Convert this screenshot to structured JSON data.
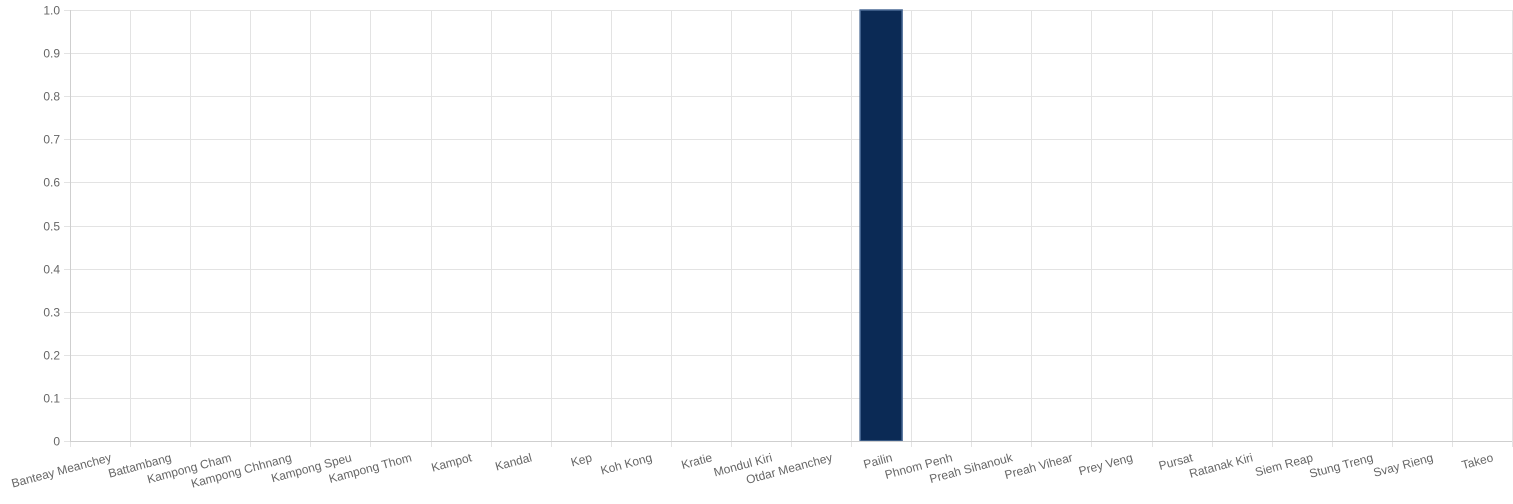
{
  "chart_data": {
    "type": "bar",
    "title": "",
    "xlabel": "",
    "ylabel": "",
    "ylim": [
      0,
      1
    ],
    "y_ticks": [
      "0",
      "0.1",
      "0.2",
      "0.3",
      "0.4",
      "0.5",
      "0.6",
      "0.7",
      "0.8",
      "0.9",
      "1.0"
    ],
    "grid": true,
    "legend": "none",
    "categories": [
      "Banteay Meanchey",
      "Battambang",
      "Kampong Cham",
      "Kampong Chhnang",
      "Kampong Speu",
      "Kampong Thom",
      "Kampot",
      "Kandal",
      "Kep",
      "Koh Kong",
      "Kratie",
      "Mondul Kiri",
      "Otdar Meanchey",
      "Pailin",
      "Phnom Penh",
      "Preah Sihanouk",
      "Preah Vihear",
      "Prey Veng",
      "Pursat",
      "Ratanak Kiri",
      "Siem Reap",
      "Stung Treng",
      "Svay Rieng",
      "Takeo"
    ],
    "values": [
      0,
      0,
      0,
      0,
      0,
      0,
      0,
      0,
      0,
      0,
      0,
      0,
      0,
      1,
      0,
      0,
      0,
      0,
      0,
      0,
      0,
      0,
      0,
      0
    ],
    "bar_color": "#0b2a55",
    "bar_border_color": "#4a6a95",
    "grid_color": "#e3e3e3",
    "label_color": "#666666"
  }
}
